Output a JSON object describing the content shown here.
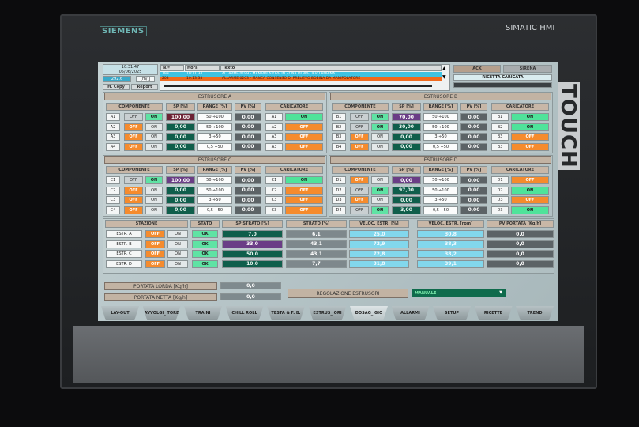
{
  "bezel": {
    "brand": "SIEMENS",
    "model": "SIMATIC HMI",
    "touch": "TOUCH"
  },
  "header": {
    "time": "10:31:47",
    "date": "05/06/2025",
    "value": "292.6",
    "unit": "[m/']",
    "hcopy": "H. Copy",
    "report": "Report",
    "alarm_columns": [
      "N.º",
      "Hora",
      "Texto"
    ],
    "alarms": [
      {
        "n": "199",
        "hora": "10:11:34",
        "texto": "ALLARME 0199 - MANIPOLATORE IN ZONA DI PRELIEVO BOBINA"
      },
      {
        "n": "203",
        "hora": "10:13:38",
        "texto": "ALLARME 0203 - MANCA CONSENSO DI PRELIEVO BOBINA DA MANIPOLATORE"
      }
    ],
    "ack": "ACK",
    "sirena": "SIRENA",
    "ricetta": "RICETTA CARICATA"
  },
  "columns": {
    "componente": "COMPONENTE",
    "sp": "SP [%]",
    "range": "RANGE [%]",
    "pv": "PV [%]",
    "caricatore": "CARICATORE",
    "off": "OFF",
    "on": "ON"
  },
  "extruders": [
    {
      "title": "ESTRUSORE A",
      "rows": [
        {
          "id": "A1",
          "state": "ON",
          "sp": "100,00",
          "sp_color": "red",
          "range": "50 ÷100",
          "pv": "0,00",
          "car_id": "A1",
          "car": "ON"
        },
        {
          "id": "A2",
          "state": "OFF",
          "sp": "0,00",
          "range": "50 ÷100",
          "pv": "0,00",
          "car_id": "A2",
          "car": "OFF"
        },
        {
          "id": "A3",
          "state": "OFF",
          "sp": "0,00",
          "range": "3 ÷50",
          "pv": "0,00",
          "car_id": "A3",
          "car": "OFF"
        },
        {
          "id": "A4",
          "state": "OFF",
          "sp": "0,00",
          "range": "0,5 ÷50",
          "pv": "0,00",
          "car_id": "A3",
          "car": "OFF"
        }
      ]
    },
    {
      "title": "ESTRUSORE B",
      "rows": [
        {
          "id": "B1",
          "state": "ON",
          "sp": "70,00",
          "sp_color": "purple",
          "range": "50 ÷100",
          "pv": "0,00",
          "car_id": "B1",
          "car": "ON"
        },
        {
          "id": "B2",
          "state": "ON",
          "sp": "30,00",
          "range": "50 ÷100",
          "pv": "0,00",
          "car_id": "B2",
          "car": "ON"
        },
        {
          "id": "B3",
          "state": "OFF",
          "sp": "0,00",
          "range": "3 ÷50",
          "pv": "0,00",
          "car_id": "B3",
          "car": "OFF"
        },
        {
          "id": "B4",
          "state": "OFF",
          "sp": "0,00",
          "range": "0,5 ÷50",
          "pv": "0,00",
          "car_id": "B3",
          "car": "OFF"
        }
      ]
    },
    {
      "title": "ESTRUSORE C",
      "rows": [
        {
          "id": "C1",
          "state": "ON",
          "sp": "100,00",
          "sp_color": "purple",
          "range": "50 ÷100",
          "pv": "0,00",
          "car_id": "C1",
          "car": "ON"
        },
        {
          "id": "C2",
          "state": "OFF",
          "sp": "0,00",
          "range": "50 ÷100",
          "pv": "0,00",
          "car_id": "C2",
          "car": "OFF"
        },
        {
          "id": "C3",
          "state": "OFF",
          "sp": "0,00",
          "range": "3 ÷50",
          "pv": "0,00",
          "car_id": "C3",
          "car": "OFF"
        },
        {
          "id": "C4",
          "state": "OFF",
          "sp": "0,00",
          "range": "0,5 ÷50",
          "pv": "0,00",
          "car_id": "C3",
          "car": "OFF"
        }
      ]
    },
    {
      "title": "ESTRUSORE D",
      "rows": [
        {
          "id": "D1",
          "state": "OFF",
          "sp": "0,00",
          "sp_color": "purple",
          "range": "50 ÷100",
          "pv": "0,00",
          "car_id": "D1",
          "car": "OFF"
        },
        {
          "id": "D2",
          "state": "ON",
          "sp": "97,00",
          "range": "50 ÷100",
          "pv": "0,00",
          "car_id": "D2",
          "car": "ON"
        },
        {
          "id": "D3",
          "state": "OFF",
          "sp": "0,00",
          "range": "3 ÷50",
          "pv": "0,00",
          "car_id": "D3",
          "car": "OFF"
        },
        {
          "id": "D4",
          "state": "ON",
          "sp": "3,00",
          "range": "0,5 ÷50",
          "pv": "0,00",
          "car_id": "D3",
          "car": "ON"
        }
      ]
    }
  ],
  "stations": {
    "columns": [
      "STAZIONE",
      "STATO",
      "SP STRATO [%]",
      "STRATO [%]",
      "VELOC. ESTR. [%]",
      "VELOC. ESTR. [rpm]",
      "PV PORTATA [Kg/h]"
    ],
    "rows": [
      {
        "name": "ESTR. A",
        "state": "OFF",
        "stato": "OK",
        "sp_strato": "7,0",
        "strato": "6,1",
        "vel_pct": "25,0",
        "vel_rpm": "30,8",
        "pv": "0,0"
      },
      {
        "name": "ESTR. B",
        "state": "OFF",
        "stato": "OK",
        "sp_strato": "33,0",
        "sp_color": "purple",
        "strato": "43,1",
        "vel_pct": "72,9",
        "vel_rpm": "38,3",
        "pv": "0,0"
      },
      {
        "name": "ESTR. C",
        "state": "OFF",
        "stato": "OK",
        "sp_strato": "50,0",
        "strato": "43,1",
        "vel_pct": "72,8",
        "vel_rpm": "38,2",
        "pv": "0,0"
      },
      {
        "name": "ESTR. D",
        "state": "OFF",
        "stato": "OK",
        "sp_strato": "10,0",
        "strato": "7,7",
        "vel_pct": "31,8",
        "vel_rpm": "39,1",
        "pv": "0,0"
      }
    ]
  },
  "portata": {
    "lorda_label": "PORTATA LORDA [Kg/h]",
    "lorda": "0,0",
    "netta_label": "PORTATA NETTA [Kg/h]",
    "netta": "0,0"
  },
  "regolazione": {
    "label": "REGOLAZIONE ESTRUSORI",
    "value": "MANUALE"
  },
  "tabs": [
    {
      "label": "LAY-OUT"
    },
    {
      "label": "AVVOLGI_ TORE"
    },
    {
      "label": "TRAINI"
    },
    {
      "label": "CHILL ROLL"
    },
    {
      "label": "TESTA & F. B."
    },
    {
      "label": "ESTRUS_ ORI"
    },
    {
      "label": "DOSAG_ GIO",
      "active": true
    },
    {
      "label": "ALLARMI"
    },
    {
      "label": "SETUP"
    },
    {
      "label": "RICETTE"
    },
    {
      "label": "TREND"
    }
  ],
  "colors": {
    "on": "#5fe3a4",
    "off": "#f58b2d",
    "sp": "#0f5e4b",
    "purple": "#6a3d86",
    "pv": "#5c6366",
    "velocity": "#82d7ec"
  }
}
